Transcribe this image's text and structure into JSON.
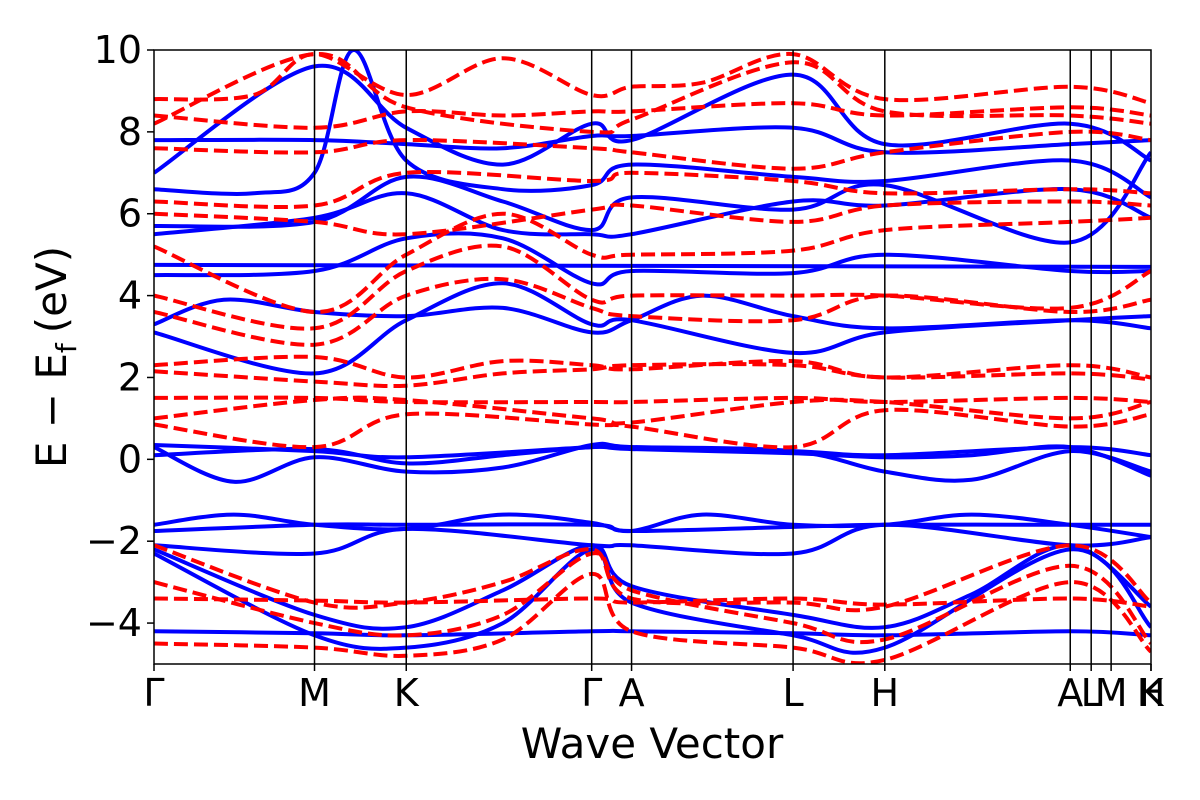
{
  "chart_data": {
    "type": "line",
    "xlabel": "Wave Vector",
    "ylabel_main": "E − E",
    "ylabel_sub": "f",
    "ylabel_unit": "(eV)",
    "ylim": [
      -5,
      10
    ],
    "yticks": [
      -4,
      -2,
      0,
      2,
      4,
      6,
      8,
      10
    ],
    "ytick_labels": [
      "−4",
      "−2",
      "0",
      "2",
      "4",
      "6",
      "8",
      "10"
    ],
    "xlim": [
      0,
      1
    ],
    "kpoints": [
      {
        "label": "Γ",
        "pos": 0.0
      },
      {
        "label": "M",
        "pos": 0.161
      },
      {
        "label": "K",
        "pos": 0.253
      },
      {
        "label": "Γ",
        "pos": 0.439
      },
      {
        "label": "A",
        "pos": 0.479
      },
      {
        "label": "L",
        "pos": 0.641
      },
      {
        "label": "H",
        "pos": 0.733
      },
      {
        "label": "A",
        "pos": 0.919
      },
      {
        "label": "L",
        "pos": 0.94
      },
      {
        "label": "M",
        "pos": 0.96
      },
      {
        "label": "K",
        "pos": 1.0
      },
      {
        "label": "H",
        "pos": 1.0
      }
    ],
    "series_colors": {
      "spin_up": "#0000ff",
      "spin_down": "#ff0000"
    },
    "series": [
      {
        "style": "solid",
        "color": "#0000ff",
        "x": [
          0,
          0.161,
          0.253,
          0.439,
          0.479,
          0.641,
          0.733,
          0.919,
          1.0
        ],
        "y": [
          0.35,
          0.2,
          0.05,
          0.3,
          0.3,
          0.2,
          0.1,
          0.3,
          0.1
        ]
      },
      {
        "style": "solid",
        "color": "#0000ff",
        "x": [
          0,
          0.08,
          0.161,
          0.253,
          0.35,
          0.439,
          0.479,
          0.641,
          0.733,
          0.82,
          0.919,
          1.0
        ],
        "y": [
          0.3,
          -0.55,
          0.05,
          -0.3,
          -0.2,
          0.35,
          0.3,
          0.2,
          -0.3,
          -0.5,
          0.2,
          -0.3
        ]
      },
      {
        "style": "solid",
        "color": "#0000ff",
        "x": [
          0,
          0.161,
          0.253,
          0.35,
          0.439,
          0.479,
          0.641,
          0.733,
          0.82,
          0.919,
          1.0
        ],
        "y": [
          0.1,
          0.25,
          -0.1,
          0.1,
          0.3,
          0.25,
          0.15,
          0.05,
          0.1,
          0.3,
          -0.4
        ]
      },
      {
        "style": "solid",
        "color": "#0000ff",
        "x": [
          0,
          0.161,
          0.253,
          0.439,
          0.479,
          0.641,
          0.733,
          0.919,
          1.0
        ],
        "y": [
          -1.75,
          -1.6,
          -1.6,
          -1.6,
          -1.75,
          -1.65,
          -1.6,
          -1.6,
          -1.6
        ]
      },
      {
        "style": "solid",
        "color": "#0000ff",
        "x": [
          0,
          0.08,
          0.161,
          0.253,
          0.35,
          0.439,
          0.479,
          0.55,
          0.641,
          0.733,
          0.82,
          0.919,
          1.0
        ],
        "y": [
          -1.6,
          -1.35,
          -1.6,
          -1.7,
          -1.35,
          -1.55,
          -1.75,
          -1.35,
          -1.6,
          -1.6,
          -1.35,
          -1.6,
          -1.9
        ]
      },
      {
        "style": "solid",
        "color": "#0000ff",
        "x": [
          0,
          0.161,
          0.253,
          0.439,
          0.479,
          0.641,
          0.733,
          0.919,
          1.0
        ],
        "y": [
          -2.1,
          -2.3,
          -1.7,
          -2.1,
          -2.1,
          -2.3,
          -1.6,
          -2.1,
          -1.9
        ]
      },
      {
        "style": "solid",
        "color": "#0000ff",
        "x": [
          0,
          0.161,
          0.253,
          0.35,
          0.439,
          0.479,
          0.641,
          0.733,
          0.82,
          0.919,
          1.0
        ],
        "y": [
          -2.2,
          -3.8,
          -4.1,
          -3.2,
          -2.1,
          -3.1,
          -3.8,
          -4.1,
          -3.3,
          -2.1,
          -3.6
        ]
      },
      {
        "style": "solid",
        "color": "#0000ff",
        "x": [
          0,
          0.161,
          0.253,
          0.35,
          0.439,
          0.479,
          0.641,
          0.733,
          0.919,
          1.0
        ],
        "y": [
          -2.3,
          -4.3,
          -4.6,
          -4.0,
          -2.2,
          -3.5,
          -4.3,
          -4.6,
          -2.2,
          -4.1
        ]
      },
      {
        "style": "solid",
        "color": "#0000ff",
        "x": [
          0,
          0.161,
          0.253,
          0.439,
          0.479,
          0.641,
          0.733,
          0.919,
          1.0
        ],
        "y": [
          -4.2,
          -4.25,
          -4.3,
          -4.2,
          -4.2,
          -4.25,
          -4.3,
          -4.2,
          -4.3
        ]
      },
      {
        "style": "solid",
        "color": "#0000ff",
        "x": [
          0,
          0.07,
          0.161,
          0.253,
          0.35,
          0.439,
          0.479,
          0.55,
          0.641,
          0.733,
          0.919,
          1.0
        ],
        "y": [
          3.3,
          3.9,
          3.6,
          3.5,
          3.7,
          3.1,
          3.4,
          4.0,
          3.5,
          3.2,
          3.4,
          3.2
        ]
      },
      {
        "style": "solid",
        "color": "#0000ff",
        "x": [
          0,
          0.161,
          0.253,
          0.35,
          0.439,
          0.479,
          0.641,
          0.733,
          0.919,
          1.0
        ],
        "y": [
          3.1,
          2.1,
          3.4,
          4.3,
          3.3,
          3.4,
          2.6,
          3.1,
          3.4,
          3.5
        ]
      },
      {
        "style": "solid",
        "color": "#0000ff",
        "x": [
          0,
          1.0
        ],
        "y": [
          4.75,
          4.7
        ]
      },
      {
        "style": "solid",
        "color": "#0000ff",
        "x": [
          0,
          0.161,
          0.253,
          0.35,
          0.439,
          0.479,
          0.641,
          0.733,
          0.919,
          1.0
        ],
        "y": [
          4.5,
          4.6,
          5.4,
          5.4,
          4.3,
          4.6,
          4.55,
          5.0,
          4.6,
          4.6
        ]
      },
      {
        "style": "solid",
        "color": "#0000ff",
        "x": [
          0,
          0.161,
          0.253,
          0.35,
          0.439,
          0.479,
          0.641,
          0.733,
          0.919,
          1.0
        ],
        "y": [
          5.5,
          5.9,
          6.5,
          5.6,
          5.5,
          5.5,
          6.3,
          6.2,
          6.6,
          5.9
        ]
      },
      {
        "style": "solid",
        "color": "#0000ff",
        "x": [
          0,
          0.161,
          0.253,
          0.35,
          0.439,
          0.479,
          0.641,
          0.733,
          0.919,
          1.0
        ],
        "y": [
          5.7,
          5.8,
          6.9,
          6.3,
          5.6,
          6.4,
          6.1,
          6.7,
          5.3,
          7.5
        ]
      },
      {
        "style": "solid",
        "color": "#0000ff",
        "x": [
          0,
          0.161,
          0.253,
          0.35,
          0.439,
          0.479,
          0.641,
          0.733,
          0.919,
          1.0
        ],
        "y": [
          7.8,
          7.8,
          7.7,
          7.6,
          7.9,
          7.9,
          8.1,
          7.5,
          7.7,
          7.8
        ]
      },
      {
        "style": "solid",
        "color": "#0000ff",
        "x": [
          0,
          0.161,
          0.253,
          0.35,
          0.439,
          0.479,
          0.641,
          0.733,
          0.919,
          1.0
        ],
        "y": [
          7.0,
          9.6,
          8.1,
          7.2,
          8.2,
          7.8,
          9.4,
          7.7,
          8.2,
          7.3
        ]
      },
      {
        "style": "solid",
        "color": "#0000ff",
        "x": [
          0,
          0.1,
          0.161,
          0.2,
          0.253,
          0.35,
          0.439,
          0.479,
          0.641,
          0.733,
          0.919,
          1.0
        ],
        "y": [
          6.6,
          6.5,
          7.0,
          10.0,
          7.3,
          6.6,
          6.7,
          7.2,
          6.9,
          6.8,
          7.3,
          6.4
        ]
      },
      {
        "style": "dashed",
        "color": "#ff0000",
        "x": [
          0,
          0.161,
          0.253,
          0.35,
          0.439,
          0.479,
          0.641,
          0.733,
          0.919,
          1.0
        ],
        "y": [
          2.3,
          2.5,
          2.0,
          2.4,
          2.3,
          2.2,
          2.4,
          2.0,
          2.3,
          2.0
        ]
      },
      {
        "style": "dashed",
        "color": "#ff0000",
        "x": [
          0,
          0.161,
          0.253,
          0.35,
          0.439,
          0.479,
          0.641,
          0.733,
          0.919,
          1.0
        ],
        "y": [
          2.15,
          1.9,
          1.8,
          2.1,
          2.2,
          2.3,
          2.3,
          2.0,
          2.1,
          1.95
        ]
      },
      {
        "style": "dashed",
        "color": "#ff0000",
        "x": [
          0,
          0.161,
          0.253,
          0.439,
          0.479,
          0.641,
          0.733,
          0.919,
          1.0
        ],
        "y": [
          1.5,
          1.5,
          1.4,
          1.4,
          1.4,
          1.5,
          1.4,
          1.5,
          1.4
        ]
      },
      {
        "style": "dashed",
        "color": "#ff0000",
        "x": [
          0,
          0.161,
          0.253,
          0.439,
          0.479,
          0.641,
          0.733,
          0.919,
          1.0
        ],
        "y": [
          1.0,
          1.45,
          1.45,
          1.0,
          0.9,
          1.4,
          1.4,
          1.0,
          1.4
        ]
      },
      {
        "style": "dashed",
        "color": "#ff0000",
        "x": [
          0,
          0.161,
          0.253,
          0.439,
          0.479,
          0.641,
          0.733,
          0.919,
          1.0
        ],
        "y": [
          0.85,
          0.3,
          1.1,
          0.85,
          0.8,
          0.3,
          1.2,
          0.8,
          1.1
        ]
      },
      {
        "style": "dashed",
        "color": "#ff0000",
        "x": [
          0,
          0.161,
          0.253,
          0.35,
          0.439,
          0.479,
          0.641,
          0.733,
          0.919,
          1.0
        ],
        "y": [
          3.6,
          2.8,
          4.0,
          4.4,
          3.7,
          3.5,
          3.4,
          4.0,
          3.6,
          3.9
        ]
      },
      {
        "style": "dashed",
        "color": "#ff0000",
        "x": [
          0,
          0.161,
          0.253,
          0.35,
          0.439,
          0.479,
          0.641,
          0.733,
          0.919,
          1.0
        ],
        "y": [
          4.0,
          3.2,
          4.6,
          5.2,
          3.9,
          4.0,
          4.0,
          4.0,
          3.7,
          4.6
        ]
      },
      {
        "style": "dashed",
        "color": "#ff0000",
        "x": [
          0,
          0.161,
          0.253,
          0.35,
          0.439,
          0.479,
          0.641,
          0.733,
          0.919,
          1.0
        ],
        "y": [
          5.2,
          3.6,
          5.0,
          6.0,
          5.0,
          5.0,
          5.1,
          5.6,
          5.8,
          5.9
        ]
      },
      {
        "style": "dashed",
        "color": "#ff0000",
        "x": [
          0,
          0.161,
          0.253,
          0.439,
          0.479,
          0.641,
          0.733,
          0.919,
          1.0
        ],
        "y": [
          6.0,
          5.8,
          5.5,
          6.1,
          6.2,
          5.8,
          6.2,
          6.3,
          6.2
        ]
      },
      {
        "style": "dashed",
        "color": "#ff0000",
        "x": [
          0,
          0.161,
          0.253,
          0.439,
          0.479,
          0.641,
          0.733,
          0.919,
          1.0
        ],
        "y": [
          6.3,
          6.2,
          7.0,
          6.8,
          7.0,
          6.8,
          6.5,
          6.6,
          6.5
        ]
      },
      {
        "style": "dashed",
        "color": "#ff0000",
        "x": [
          0,
          0.161,
          0.253,
          0.439,
          0.479,
          0.641,
          0.733,
          0.919,
          1.0
        ],
        "y": [
          7.6,
          7.5,
          7.8,
          7.6,
          7.5,
          7.1,
          7.5,
          8.0,
          7.8
        ]
      },
      {
        "style": "dashed",
        "color": "#ff0000",
        "x": [
          0,
          0.161,
          0.253,
          0.35,
          0.439,
          0.479,
          0.641,
          0.733,
          0.919,
          1.0
        ],
        "y": [
          8.4,
          8.1,
          8.5,
          8.4,
          8.5,
          8.5,
          8.7,
          8.4,
          8.6,
          8.4
        ]
      },
      {
        "style": "dashed",
        "color": "#ff0000",
        "x": [
          0,
          0.1,
          0.161,
          0.253,
          0.35,
          0.439,
          0.479,
          0.55,
          0.641,
          0.733,
          0.919,
          1.0
        ],
        "y": [
          8.8,
          8.9,
          9.9,
          8.9,
          9.8,
          8.9,
          9.1,
          9.2,
          9.9,
          8.8,
          9.1,
          8.7
        ]
      },
      {
        "style": "dashed",
        "color": "#ff0000",
        "x": [
          0,
          0.161,
          0.253,
          0.439,
          0.479,
          0.641,
          0.733,
          0.919,
          1.0
        ],
        "y": [
          8.2,
          9.9,
          8.6,
          8.0,
          8.3,
          9.7,
          8.5,
          8.4,
          8.2
        ]
      },
      {
        "style": "dashed",
        "color": "#ff0000",
        "x": [
          0,
          0.161,
          0.253,
          0.35,
          0.439,
          0.479,
          0.641,
          0.733,
          0.919,
          1.0
        ],
        "y": [
          -2.1,
          -3.5,
          -3.5,
          -3.0,
          -2.2,
          -3.4,
          -3.5,
          -3.6,
          -2.1,
          -3.5
        ]
      },
      {
        "style": "dashed",
        "color": "#ff0000",
        "x": [
          0,
          0.161,
          0.253,
          0.439,
          0.479,
          0.641,
          0.733,
          0.919,
          1.0
        ],
        "y": [
          -3.4,
          -3.45,
          -3.5,
          -3.4,
          -3.5,
          -3.4,
          -3.55,
          -3.4,
          -3.6
        ]
      },
      {
        "style": "dashed",
        "color": "#ff0000",
        "x": [
          0,
          0.161,
          0.253,
          0.35,
          0.439,
          0.479,
          0.641,
          0.733,
          0.919,
          1.0
        ],
        "y": [
          -3.0,
          -4.0,
          -4.3,
          -3.8,
          -2.3,
          -3.2,
          -4.0,
          -4.4,
          -2.6,
          -4.5
        ]
      },
      {
        "style": "dashed",
        "color": "#ff0000",
        "x": [
          0,
          0.161,
          0.253,
          0.35,
          0.439,
          0.479,
          0.641,
          0.733,
          0.919,
          1.0
        ],
        "y": [
          -4.5,
          -4.6,
          -4.8,
          -4.4,
          -2.8,
          -4.2,
          -4.6,
          -4.9,
          -3.0,
          -4.7
        ]
      }
    ]
  }
}
